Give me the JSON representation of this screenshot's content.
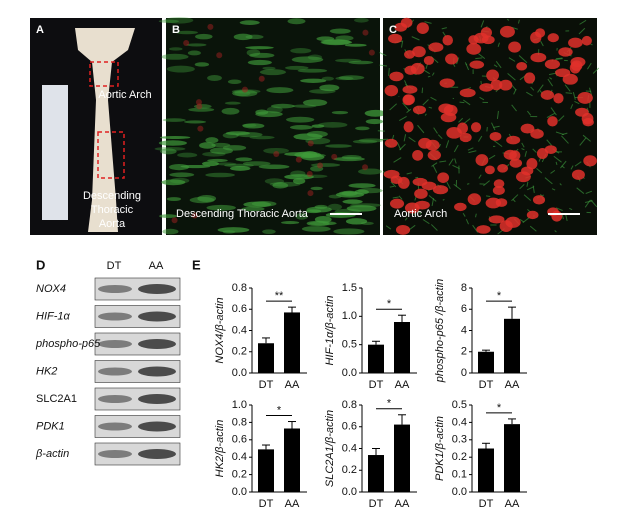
{
  "panels": {
    "a": {
      "letter": "A",
      "arch_label": "Aortic Arch",
      "desc_label": [
        "Descending",
        "Thoracic",
        "Aorta"
      ]
    },
    "b": {
      "letter": "B",
      "caption": "Descending Thoracic Aorta"
    },
    "c": {
      "letter": "C",
      "caption": "Aortic Arch"
    },
    "d": {
      "letter": "D",
      "columns": [
        "DT",
        "AA"
      ],
      "rows": [
        "NOX4",
        "HIF-1α",
        "phospho-p65",
        "HK2",
        "SLC2A1",
        "PDK1",
        "β-actin"
      ]
    },
    "e": {
      "letter": "E"
    }
  },
  "chart_data": [
    {
      "type": "bar",
      "ylabel": "NOX4/β-actin",
      "categories": [
        "DT",
        "AA"
      ],
      "values": [
        0.28,
        0.57
      ],
      "errors": [
        0.05,
        0.05
      ],
      "annotation": "**",
      "color": "#000000",
      "ylim": [
        0,
        0.8
      ],
      "yticks": [
        {
          "value": 0,
          "label": "0.0"
        },
        0.2,
        0.4,
        0.6,
        0.8
      ]
    },
    {
      "type": "bar",
      "ylabel": "HIF-1α/β-actin",
      "categories": [
        "DT",
        "AA"
      ],
      "values": [
        0.5,
        0.9
      ],
      "errors": [
        0.06,
        0.12
      ],
      "annotation": "*",
      "color": "#000000",
      "ylim": [
        0,
        1.5
      ],
      "yticks": [
        {
          "value": 0,
          "label": "0.0"
        },
        0.5,
        {
          "value": 1,
          "label": "1.0"
        },
        1.5
      ]
    },
    {
      "type": "bar",
      "ylabel": "phospho-p65 /β-actin",
      "categories": [
        "DT",
        "AA"
      ],
      "values": [
        2.0,
        5.1
      ],
      "errors": [
        0.15,
        1.1
      ],
      "annotation": "*",
      "color": "#000000",
      "ylim": [
        0,
        8
      ],
      "yticks": [
        0,
        2,
        4,
        6,
        8
      ]
    },
    {
      "type": "bar",
      "ylabel": "HK2/β-actin",
      "categories": [
        "DT",
        "AA"
      ],
      "values": [
        0.49,
        0.73
      ],
      "errors": [
        0.05,
        0.08
      ],
      "annotation": "*",
      "color": "#000000",
      "ylim": [
        0,
        1
      ],
      "yticks": [
        {
          "value": 0,
          "label": "0.0"
        },
        0.2,
        0.4,
        0.6,
        0.8,
        {
          "value": 1,
          "label": "1.0"
        }
      ]
    },
    {
      "type": "bar",
      "ylabel": "SLC2A1/β-actin",
      "categories": [
        "DT",
        "AA"
      ],
      "values": [
        0.34,
        0.62
      ],
      "errors": [
        0.06,
        0.09
      ],
      "annotation": "*",
      "color": "#000000",
      "ylim": [
        0,
        0.8
      ],
      "yticks": [
        {
          "value": 0,
          "label": "0.0"
        },
        0.2,
        0.4,
        0.6,
        0.8
      ]
    },
    {
      "type": "bar",
      "ylabel": "PDK1/β-actin",
      "categories": [
        "DT",
        "AA"
      ],
      "values": [
        0.25,
        0.39
      ],
      "errors": [
        0.03,
        0.03
      ],
      "annotation": "*",
      "color": "#000000",
      "ylim": [
        0,
        0.5
      ],
      "yticks": [
        {
          "value": 0,
          "label": "0.0"
        },
        0.1,
        0.2,
        0.3,
        0.4,
        0.5
      ]
    }
  ]
}
